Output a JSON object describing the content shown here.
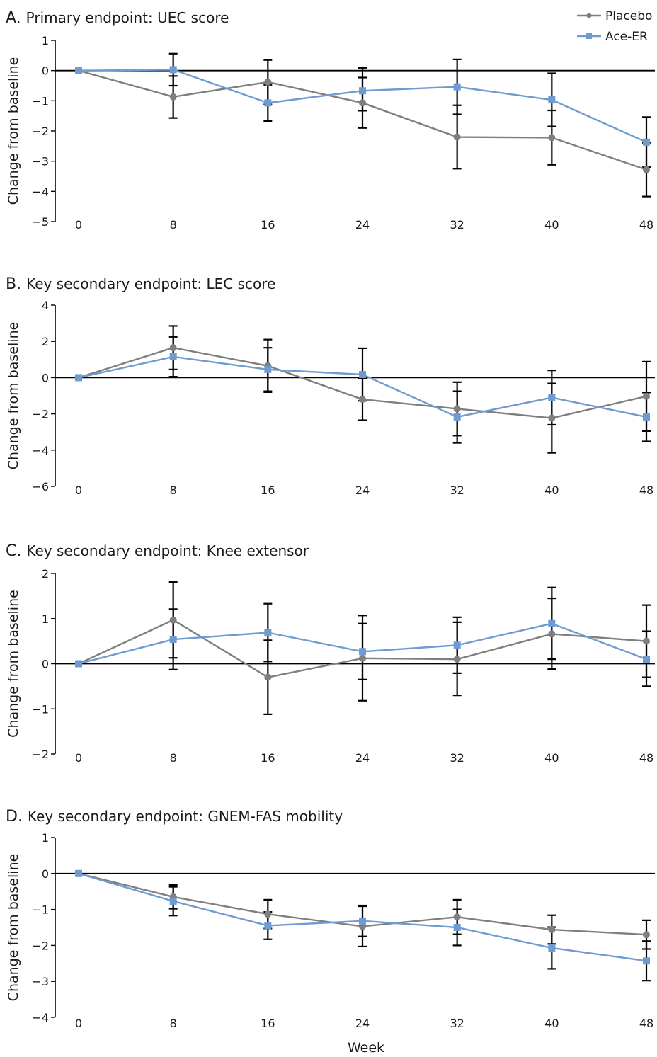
{
  "chart_data": [
    {
      "type": "line",
      "letter": "A.",
      "title": "Primary endpoint: UEC score",
      "ylabel": "Change from baseline",
      "ylim": [
        -5,
        1
      ],
      "yticks": [
        "1",
        "0",
        "−1",
        "−2",
        "−3",
        "−4",
        "−5"
      ],
      "x": [
        0,
        8,
        16,
        24,
        32,
        40,
        48
      ],
      "xticks": [
        "0",
        "8",
        "16",
        "24",
        "32",
        "40",
        "48"
      ],
      "series": [
        {
          "name": "Placebo",
          "values": [
            0,
            -0.87,
            -0.38,
            -1.07,
            -2.2,
            -2.22,
            -3.28
          ],
          "lower": [
            0,
            -1.57,
            -1.12,
            -1.9,
            -3.25,
            -3.12,
            -4.17
          ],
          "upper": [
            0,
            -0.18,
            0.35,
            -0.23,
            -1.15,
            -1.32,
            -2.39
          ]
        },
        {
          "name": "Ace-ER",
          "values": [
            0,
            0.03,
            -1.07,
            -0.67,
            -0.54,
            -0.97,
            -2.37
          ],
          "lower": [
            0,
            -0.5,
            -1.67,
            -1.33,
            -1.45,
            -1.85,
            -3.2
          ],
          "upper": [
            0,
            0.56,
            -0.47,
            0.09,
            0.37,
            -0.09,
            -1.54
          ]
        }
      ]
    },
    {
      "type": "line",
      "letter": "B.",
      "title": "Key secondary endpoint: LEC score",
      "ylabel": "Change from baseline",
      "ylim": [
        -6,
        4
      ],
      "yticks": [
        "4",
        "2",
        "0",
        "−2",
        "−4",
        "−6"
      ],
      "x": [
        0,
        8,
        16,
        24,
        32,
        40,
        48
      ],
      "xticks": [
        "0",
        "8",
        "16",
        "24",
        "32",
        "40",
        "48"
      ],
      "series": [
        {
          "name": "Placebo",
          "values": [
            0,
            1.65,
            0.65,
            -1.2,
            -1.72,
            -2.23,
            -1.03
          ],
          "lower": [
            0,
            0.45,
            -0.8,
            -2.35,
            -3.2,
            -4.15,
            -2.95
          ],
          "upper": [
            0,
            2.85,
            2.1,
            -0.05,
            -0.25,
            -0.32,
            0.88
          ]
        },
        {
          "name": "Ace-ER",
          "values": [
            0,
            1.15,
            0.45,
            0.17,
            -2.17,
            -1.1,
            -2.17
          ],
          "lower": [
            0,
            0.05,
            -0.75,
            -1.28,
            -3.6,
            -2.6,
            -3.52
          ],
          "upper": [
            0,
            2.25,
            1.65,
            1.62,
            -0.75,
            0.4,
            -0.82
          ]
        }
      ]
    },
    {
      "type": "line",
      "letter": "C.",
      "title": "Key secondary endpoint: Knee extensor",
      "ylabel": "Change from baseline",
      "ylim": [
        -2,
        2
      ],
      "yticks": [
        "2",
        "1",
        "0",
        "−1",
        "−2"
      ],
      "x": [
        0,
        8,
        16,
        24,
        32,
        40,
        48
      ],
      "xticks": [
        "0",
        "8",
        "16",
        "24",
        "32",
        "40",
        "48"
      ],
      "series": [
        {
          "name": "Placebo",
          "values": [
            0,
            0.97,
            -0.3,
            0.12,
            0.1,
            0.66,
            0.5
          ],
          "lower": [
            0,
            0.13,
            -1.12,
            -0.82,
            -0.7,
            -0.12,
            -0.3
          ],
          "upper": [
            0,
            1.81,
            0.52,
            1.07,
            0.92,
            1.45,
            1.3
          ]
        },
        {
          "name": "Ace-ER",
          "values": [
            0,
            0.54,
            0.69,
            0.27,
            0.41,
            0.89,
            0.1
          ],
          "lower": [
            0,
            -0.13,
            0.05,
            -0.35,
            -0.21,
            0.1,
            -0.5
          ],
          "upper": [
            0,
            1.21,
            1.33,
            0.89,
            1.03,
            1.69,
            0.72
          ]
        }
      ]
    },
    {
      "type": "line",
      "letter": "D.",
      "title": "Key secondary endpoint: GNEM-FAS mobility",
      "ylabel": "Change from baseline",
      "ylim": [
        -4,
        1
      ],
      "yticks": [
        "1",
        "0",
        "−1",
        "−2",
        "−3",
        "−4"
      ],
      "x": [
        0,
        8,
        16,
        24,
        32,
        40,
        48
      ],
      "xticks": [
        "0",
        "8",
        "16",
        "24",
        "32",
        "40",
        "48"
      ],
      "xlabel": "Week",
      "series": [
        {
          "name": "Placebo",
          "values": [
            0,
            -0.65,
            -1.13,
            -1.47,
            -1.21,
            -1.56,
            -1.7
          ],
          "lower": [
            0,
            -0.98,
            -1.53,
            -2.03,
            -1.69,
            -1.96,
            -2.1
          ],
          "upper": [
            0,
            -0.32,
            -0.73,
            -0.91,
            -0.73,
            -1.16,
            -1.3
          ]
        },
        {
          "name": "Ace-ER",
          "values": [
            0,
            -0.77,
            -1.45,
            -1.32,
            -1.5,
            -2.07,
            -2.43
          ],
          "lower": [
            0,
            -1.17,
            -1.83,
            -1.75,
            -2.0,
            -2.65,
            -2.98
          ],
          "upper": [
            0,
            -0.37,
            -1.07,
            -0.89,
            -1.0,
            -1.49,
            -1.88
          ]
        }
      ]
    }
  ],
  "legend": {
    "position": "top-right",
    "items": [
      {
        "name": "Placebo",
        "color": "#7f7f7f",
        "marker": "circle"
      },
      {
        "name": "Ace-ER",
        "color": "#6f9bd1",
        "marker": "square"
      }
    ]
  }
}
